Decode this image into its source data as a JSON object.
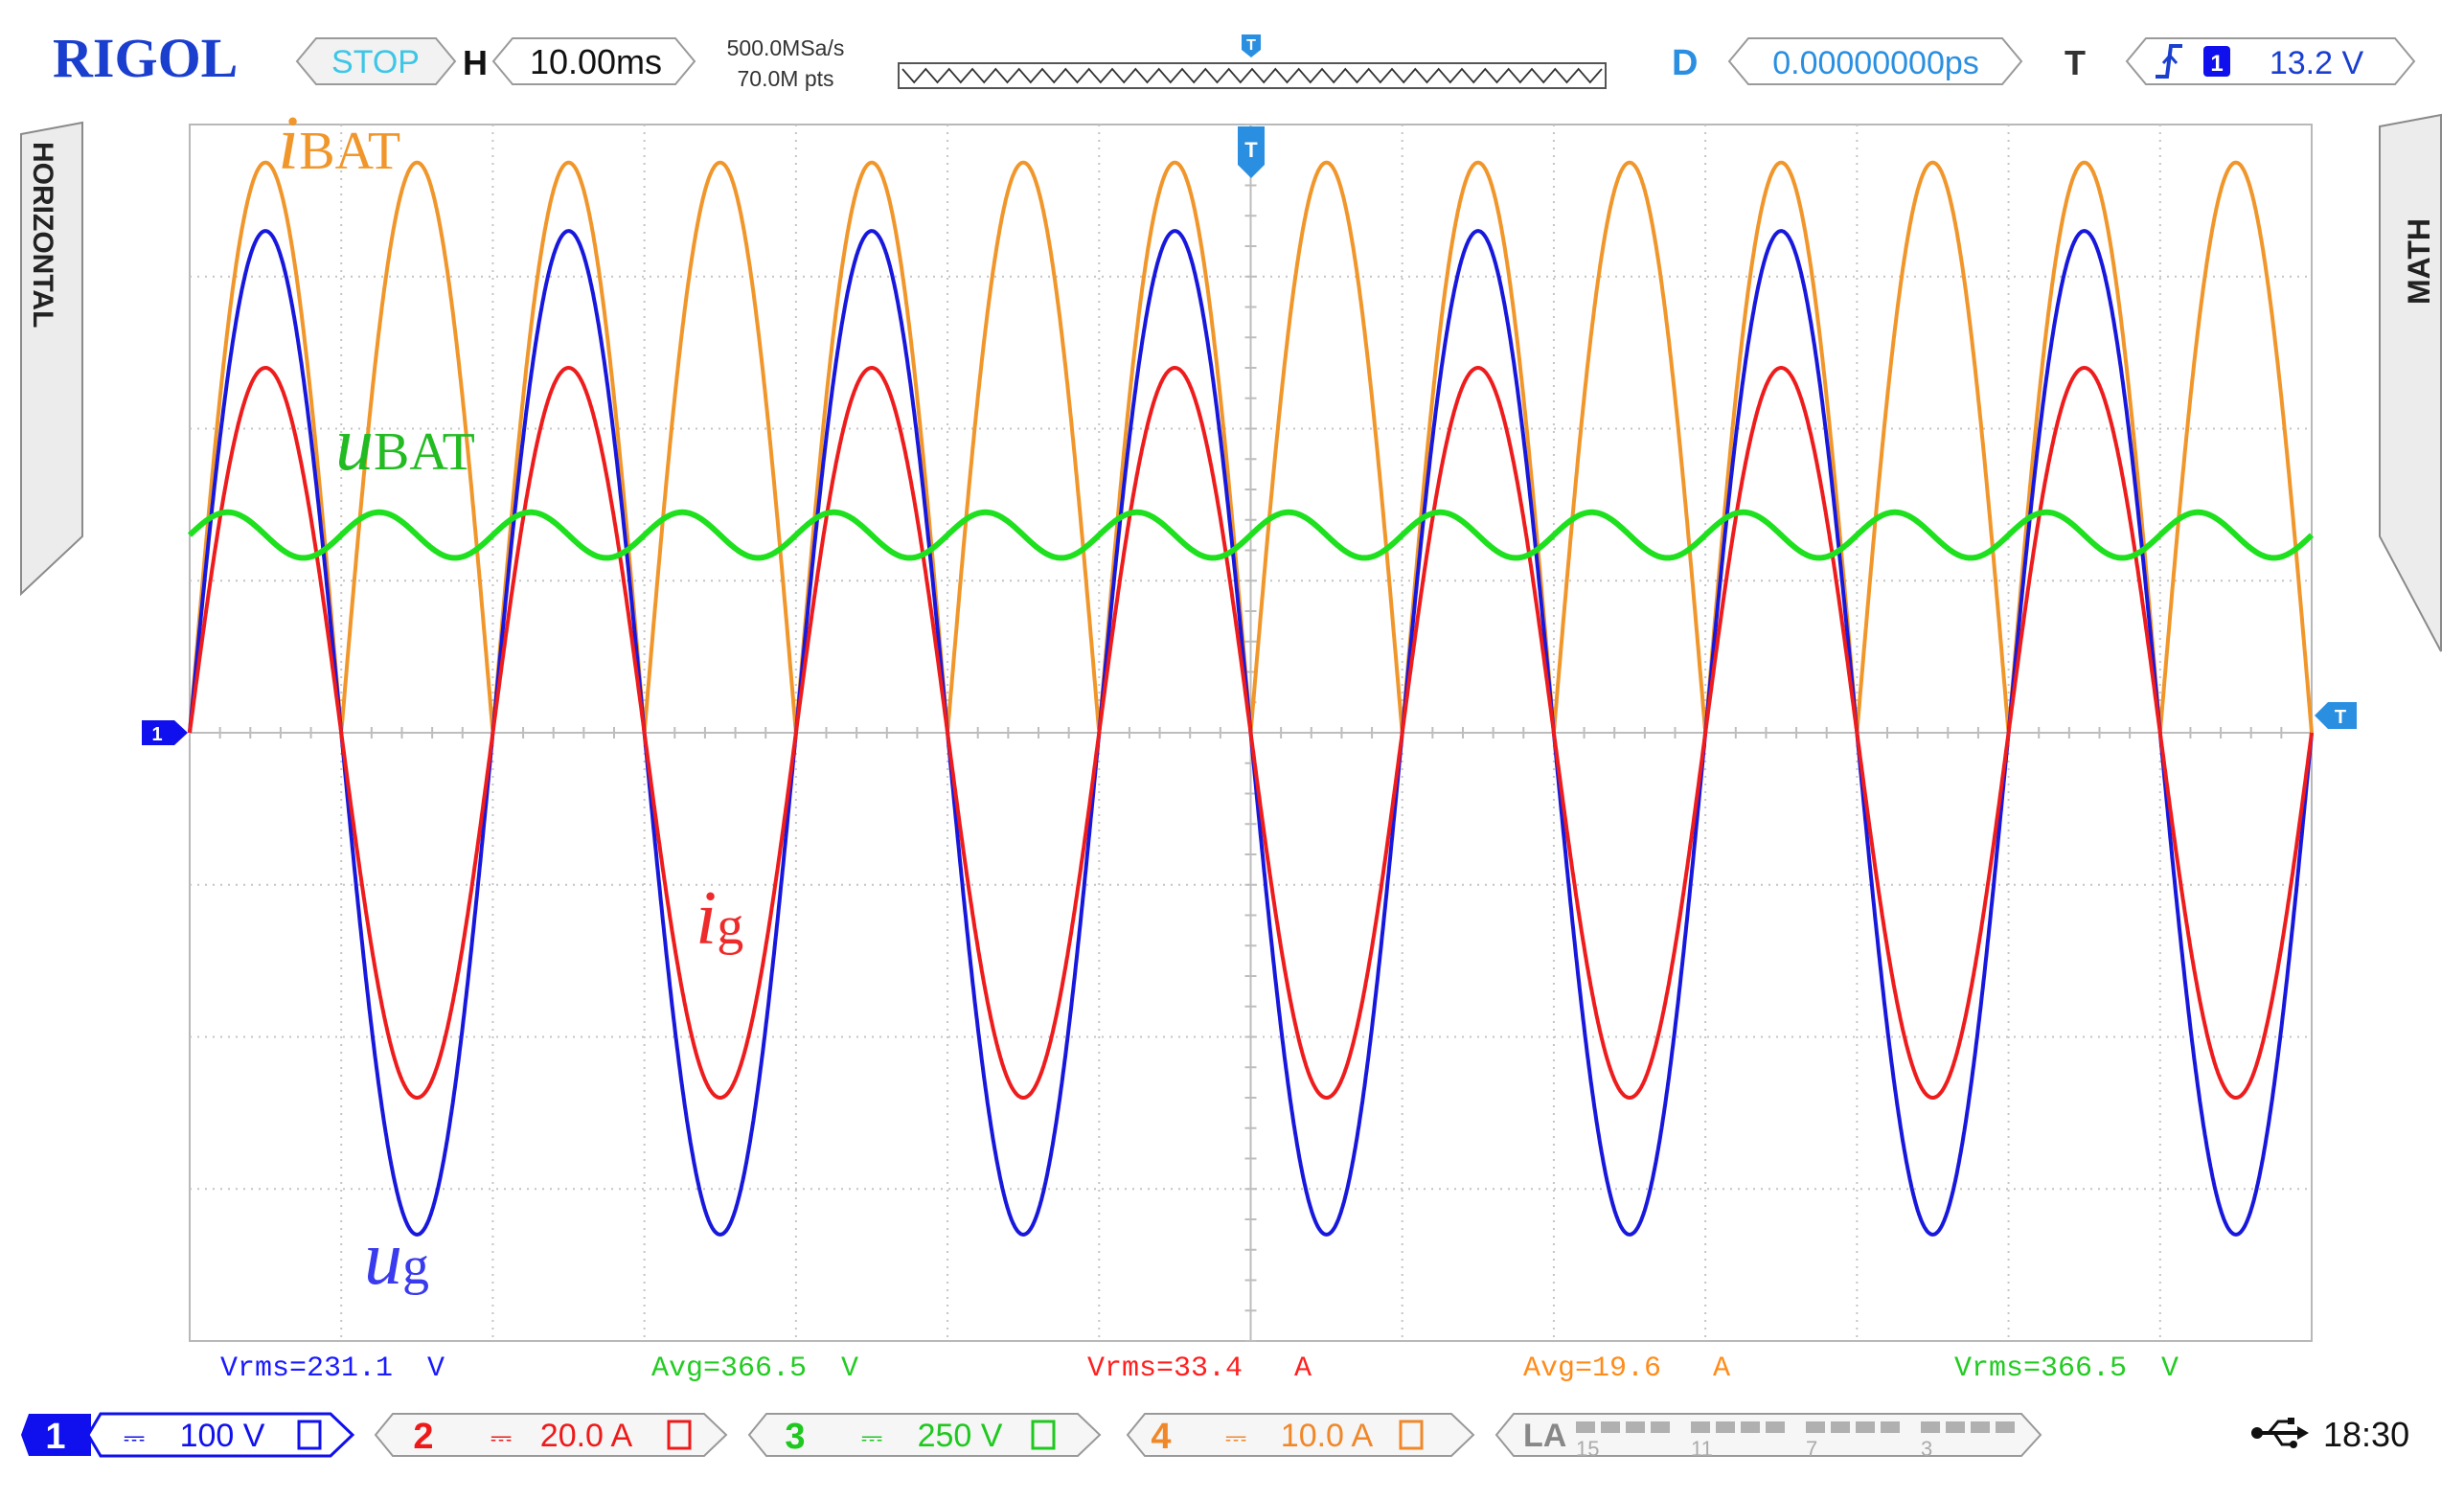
{
  "header": {
    "brand": "RIGOL",
    "run_state": "STOP",
    "h_label": "H",
    "timebase": "10.00ms",
    "sample_rate": "500.0MSa/s",
    "memory_depth": "70.0M pts",
    "d_label": "D",
    "delay": "0.00000000ps",
    "t_label": "T",
    "trigger_channel": "1",
    "trigger_level": "13.2 V"
  },
  "side_tabs": {
    "left": "HORIZONTAL",
    "right": "MATH"
  },
  "markers": {
    "channel1": "1",
    "trigger_top": "T",
    "trigger_right": "T"
  },
  "waveform_labels": {
    "i_bat": {
      "main": "i",
      "sub": "BAT"
    },
    "u_bat": {
      "main": "u",
      "sub": "BAT"
    },
    "i_g": {
      "main": "i",
      "sub": "g"
    },
    "u_g": {
      "main": "u",
      "sub": "g"
    }
  },
  "measurements": [
    {
      "text": "Vrms=231.1  V",
      "color": "#1a1aff"
    },
    {
      "text": "Avg=366.5  V",
      "color": "#22cc22"
    },
    {
      "text": "Vrms=33.4   A",
      "color": "#ff2020"
    },
    {
      "text": "Avg=19.6   A",
      "color": "#ff8c1a"
    },
    {
      "text": "Vrms=366.5  V",
      "color": "#22cc22"
    }
  ],
  "channels": [
    {
      "num": "1",
      "coupling": "⎓",
      "scale": "100 V",
      "color": "#1010ee"
    },
    {
      "num": "2",
      "coupling": "⎓",
      "scale": "20.0 A",
      "color": "#ee1a1a"
    },
    {
      "num": "3",
      "coupling": "⎓",
      "scale": "250 V",
      "color": "#1ec81e"
    },
    {
      "num": "4",
      "coupling": "⎓",
      "scale": "10.0 A",
      "color": "#f0882a"
    }
  ],
  "la": {
    "label": "LA",
    "numbers": [
      "15",
      "11",
      "7",
      "3"
    ]
  },
  "status": {
    "time": "18:30",
    "usb_icon": "usb-icon"
  },
  "chart_data": {
    "type": "line",
    "x_unit": "divisions",
    "x_range": [
      0,
      14
    ],
    "y_range_divisions": [
      -4,
      4
    ],
    "waveforms": [
      {
        "id": "i_bat",
        "color": "#f0962a",
        "cycles": 14,
        "shape": "abs-sine",
        "peak_div": 3.75,
        "offset_div": 0
      },
      {
        "id": "u_g",
        "color": "#1818dd",
        "cycles": 7,
        "shape": "sine",
        "peak_div": 3.3,
        "offset_div": 0
      },
      {
        "id": "i_g",
        "color": "#ee1c1c",
        "cycles": 7,
        "shape": "sine",
        "peak_div": 2.4,
        "offset_div": 0
      },
      {
        "id": "u_bat",
        "color": "#1ee01e",
        "cycles": 14,
        "shape": "sine",
        "peak_div": 0.15,
        "offset_div": 1.3
      }
    ]
  }
}
